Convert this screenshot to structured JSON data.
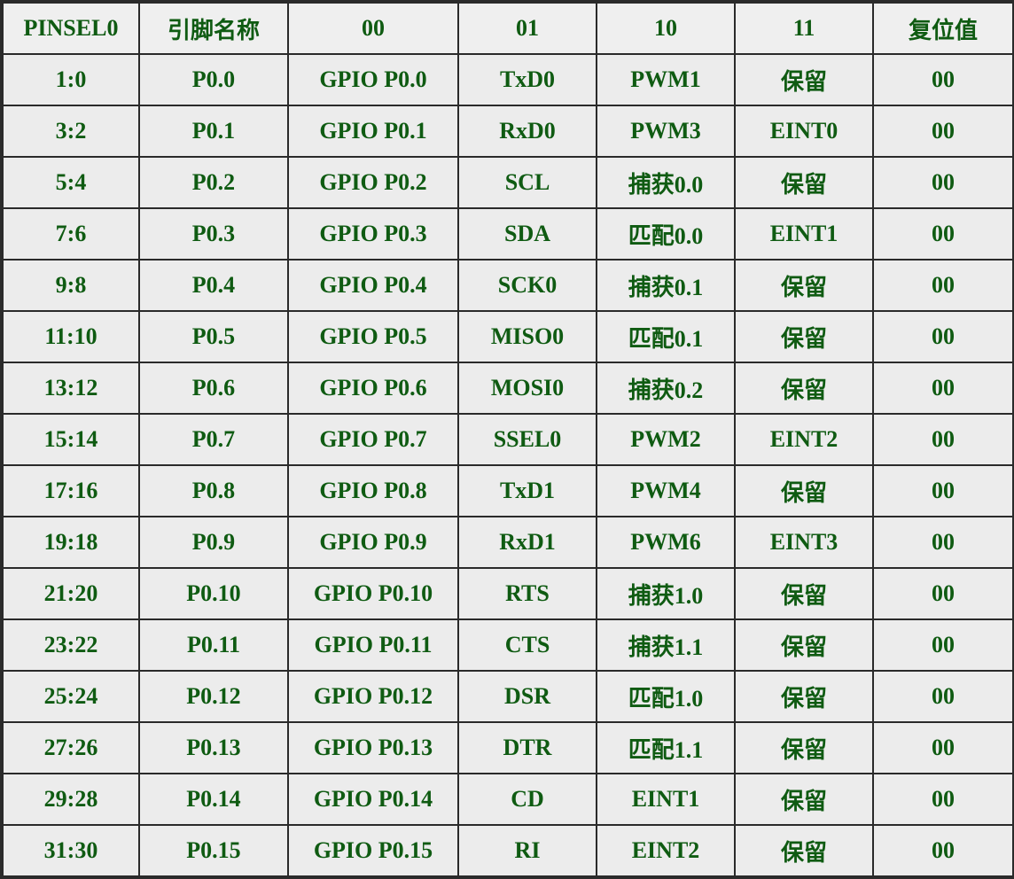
{
  "header": {
    "register": "PINSEL0",
    "pin_name": "引脚名称",
    "opt00": "00",
    "opt01": "01",
    "opt10": "10",
    "opt11": "11",
    "reset": "复位值"
  },
  "rows": [
    {
      "bits": "1:0",
      "pin": "P0.0",
      "f00": "GPIO P0.0",
      "f01": "TxD0",
      "f10": "PWM1",
      "f11": "保留",
      "reset": "00"
    },
    {
      "bits": "3:2",
      "pin": "P0.1",
      "f00": "GPIO P0.1",
      "f01": "RxD0",
      "f10": "PWM3",
      "f11": "EINT0",
      "reset": "00"
    },
    {
      "bits": "5:4",
      "pin": "P0.2",
      "f00": "GPIO P0.2",
      "f01": "SCL",
      "f10": "捕获0.0",
      "f11": "保留",
      "reset": "00"
    },
    {
      "bits": "7:6",
      "pin": "P0.3",
      "f00": "GPIO P0.3",
      "f01": "SDA",
      "f10": "匹配0.0",
      "f11": "EINT1",
      "reset": "00"
    },
    {
      "bits": "9:8",
      "pin": "P0.4",
      "f00": "GPIO P0.4",
      "f01": "SCK0",
      "f10": "捕获0.1",
      "f11": "保留",
      "reset": "00"
    },
    {
      "bits": "11:10",
      "pin": "P0.5",
      "f00": "GPIO P0.5",
      "f01": "MISO0",
      "f10": "匹配0.1",
      "f11": "保留",
      "reset": "00"
    },
    {
      "bits": "13:12",
      "pin": "P0.6",
      "f00": "GPIO P0.6",
      "f01": "MOSI0",
      "f10": "捕获0.2",
      "f11": "保留",
      "reset": "00"
    },
    {
      "bits": "15:14",
      "pin": "P0.7",
      "f00": "GPIO P0.7",
      "f01": "SSEL0",
      "f10": "PWM2",
      "f11": "EINT2",
      "reset": "00"
    },
    {
      "bits": "17:16",
      "pin": "P0.8",
      "f00": "GPIO P0.8",
      "f01": "TxD1",
      "f10": "PWM4",
      "f11": "保留",
      "reset": "00"
    },
    {
      "bits": "19:18",
      "pin": "P0.9",
      "f00": "GPIO P0.9",
      "f01": "RxD1",
      "f10": "PWM6",
      "f11": "EINT3",
      "reset": "00"
    },
    {
      "bits": "21:20",
      "pin": "P0.10",
      "f00": "GPIO P0.10",
      "f01": "RTS",
      "f10": "捕获1.0",
      "f11": "保留",
      "reset": "00"
    },
    {
      "bits": "23:22",
      "pin": "P0.11",
      "f00": "GPIO P0.11",
      "f01": "CTS",
      "f10": "捕获1.1",
      "f11": "保留",
      "reset": "00"
    },
    {
      "bits": "25:24",
      "pin": "P0.12",
      "f00": "GPIO P0.12",
      "f01": "DSR",
      "f10": "匹配1.0",
      "f11": "保留",
      "reset": "00"
    },
    {
      "bits": "27:26",
      "pin": "P0.13",
      "f00": "GPIO P0.13",
      "f01": "DTR",
      "f10": "匹配1.1",
      "f11": "保留",
      "reset": "00"
    },
    {
      "bits": "29:28",
      "pin": "P0.14",
      "f00": "GPIO P0.14",
      "f01": "CD",
      "f10": "EINT1",
      "f11": "保留",
      "reset": "00"
    },
    {
      "bits": "31:30",
      "pin": "P0.15",
      "f00": "GPIO P0.15",
      "f01": "RI",
      "f10": "EINT2",
      "f11": "保留",
      "reset": "00"
    }
  ],
  "colors": {
    "text": "#0f5b12",
    "cell_bg": "#ececec",
    "border": "#2a2a2a"
  }
}
